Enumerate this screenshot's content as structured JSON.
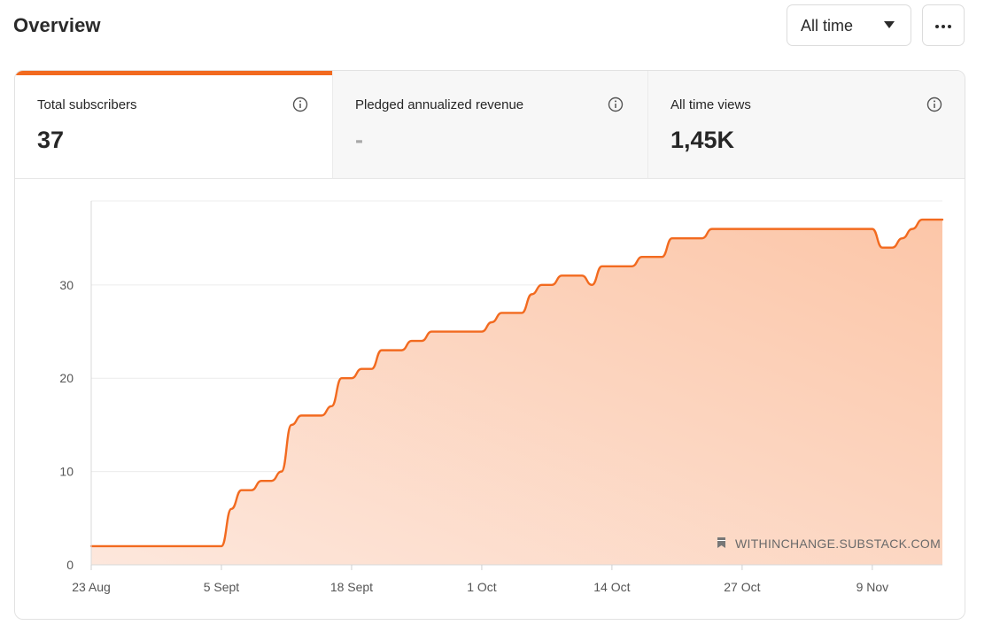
{
  "header": {
    "title": "Overview",
    "range_label": "All time"
  },
  "stats": [
    {
      "label": "Total subscribers",
      "value": "37",
      "selected": true
    },
    {
      "label": "Pledged annualized revenue",
      "value": "-",
      "selected": false
    },
    {
      "label": "All time views",
      "value": "1,45K",
      "selected": false
    }
  ],
  "colors": {
    "accent": "#f26a1f",
    "area_top": "#fcc6a8",
    "area_bottom": "#fde7dc"
  },
  "watermark": "WITHINCHANGE.SUBSTACK.COM",
  "chart_data": {
    "type": "area",
    "title": "",
    "xlabel": "",
    "ylabel": "",
    "ylim": [
      0,
      39
    ],
    "yticks": [
      0,
      10,
      20,
      30
    ],
    "ytick_labels": [
      "0",
      "10",
      "20",
      "30"
    ],
    "xticks": [
      0,
      13,
      26,
      39,
      52,
      65,
      78
    ],
    "xtick_labels": [
      "23 Aug",
      "5 Sept",
      "18 Sept",
      "1 Oct",
      "14 Oct",
      "27 Oct",
      "9 Nov"
    ],
    "x_units": "days since 23 Aug",
    "grid": true,
    "series": [
      {
        "name": "Total subscribers",
        "x": [
          0,
          13,
          14,
          15,
          16,
          17,
          18,
          19,
          20,
          21,
          22,
          23,
          24,
          25,
          26,
          27,
          28,
          29,
          30,
          31,
          32,
          33,
          34,
          35,
          36,
          37,
          38,
          39,
          40,
          41,
          42,
          43,
          44,
          45,
          46,
          47,
          48,
          49,
          50,
          51,
          52,
          53,
          54,
          55,
          56,
          57,
          58,
          59,
          60,
          61,
          62,
          63,
          64,
          65,
          66,
          67,
          68,
          69,
          70,
          71,
          72,
          73,
          74,
          75,
          76,
          77,
          78,
          79,
          80,
          81,
          82,
          83,
          84,
          85
        ],
        "y": [
          2,
          2,
          6,
          8,
          8,
          9,
          9,
          10,
          15,
          16,
          16,
          16,
          17,
          20,
          20,
          21,
          21,
          23,
          23,
          23,
          24,
          24,
          25,
          25,
          25,
          25,
          25,
          25,
          26,
          27,
          27,
          27,
          29,
          30,
          30,
          31,
          31,
          31,
          30,
          32,
          32,
          32,
          32,
          33,
          33,
          33,
          35,
          35,
          35,
          35,
          36,
          36,
          36,
          36,
          36,
          36,
          36,
          36,
          36,
          36,
          36,
          36,
          36,
          36,
          36,
          36,
          36,
          34,
          34,
          35,
          36,
          37,
          37,
          37
        ]
      }
    ]
  }
}
